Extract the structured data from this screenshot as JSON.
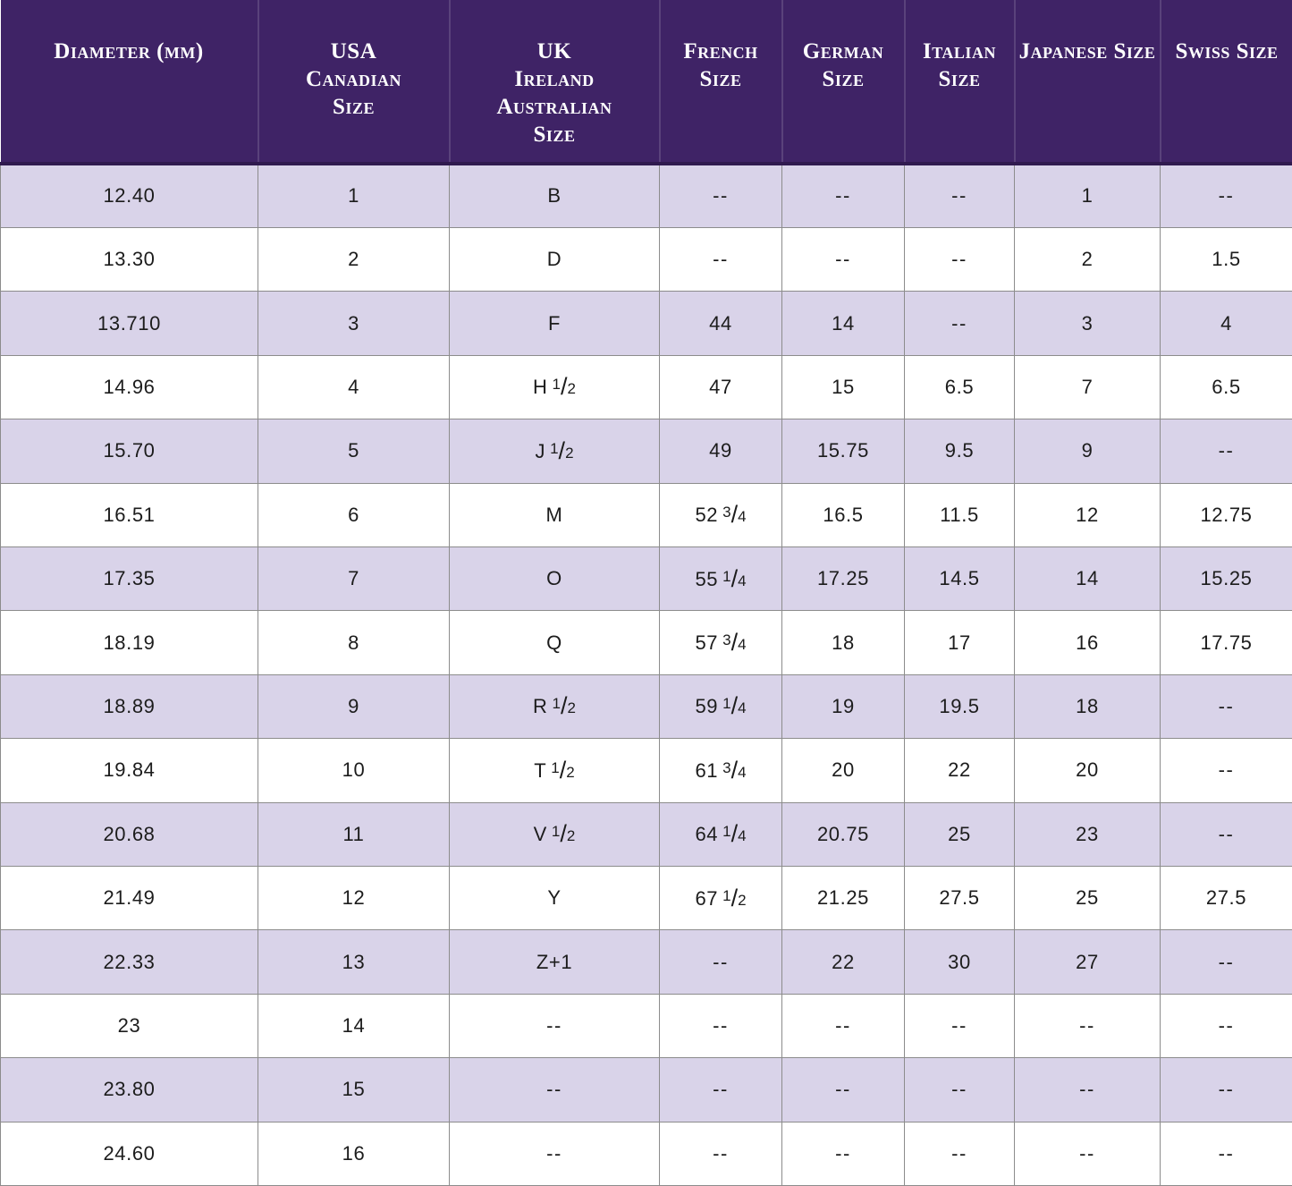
{
  "colors": {
    "header_bg": "#3f2366",
    "header_text": "#ffffff",
    "row_bg": "#ffffff",
    "row_alt_bg": "#d9d3e9",
    "grid": "#8c8c8c",
    "body_text": "#1c1c1c"
  },
  "table": {
    "columns": [
      {
        "id": "diameter",
        "label": "Diameter (mm)",
        "lines": [
          "Diameter (mm)"
        ]
      },
      {
        "id": "usa-canadian",
        "label": "USA Canadian Size",
        "lines": [
          "USA",
          "Canadian",
          "Size"
        ]
      },
      {
        "id": "uk-ireland-australian",
        "label": "UK Ireland Australian Size",
        "lines": [
          "UK",
          "Ireland",
          "Australian",
          "Size"
        ]
      },
      {
        "id": "french",
        "label": "French Size",
        "lines": [
          "French",
          "Size"
        ]
      },
      {
        "id": "german",
        "label": "German Size",
        "lines": [
          "German",
          "Size"
        ]
      },
      {
        "id": "italian",
        "label": "Italian Size",
        "lines": [
          "Italian",
          "Size"
        ]
      },
      {
        "id": "japanese",
        "label": "Japanese Size",
        "lines": [
          "Japanese Size"
        ]
      },
      {
        "id": "swiss",
        "label": "Swiss Size",
        "lines": [
          "Swiss Size"
        ]
      }
    ],
    "rows": [
      [
        "12.40",
        "1",
        "B",
        "--",
        "--",
        "--",
        "1",
        "--"
      ],
      [
        "13.30",
        "2",
        "D",
        "--",
        "--",
        "--",
        "2",
        "1.5"
      ],
      [
        "13.710",
        "3",
        "F",
        "44",
        "14",
        "--",
        "3",
        "4"
      ],
      [
        "14.96",
        "4",
        "H 1/2",
        "47",
        "15",
        "6.5",
        "7",
        "6.5"
      ],
      [
        "15.70",
        "5",
        "J 1/2",
        "49",
        "15.75",
        "9.5",
        "9",
        "--"
      ],
      [
        "16.51",
        "6",
        "M",
        "52 3/4",
        "16.5",
        "11.5",
        "12",
        "12.75"
      ],
      [
        "17.35",
        "7",
        "O",
        "55 1/4",
        "17.25",
        "14.5",
        "14",
        "15.25"
      ],
      [
        "18.19",
        "8",
        "Q",
        "57 3/4",
        "18",
        "17",
        "16",
        "17.75"
      ],
      [
        "18.89",
        "9",
        "R 1/2",
        "59 1/4",
        "19",
        "19.5",
        "18",
        "--"
      ],
      [
        "19.84",
        "10",
        "T 1/2",
        "61 3/4",
        "20",
        "22",
        "20",
        "--"
      ],
      [
        "20.68",
        "11",
        "V 1/2",
        "64 1/4",
        "20.75",
        "25",
        "23",
        "--"
      ],
      [
        "21.49",
        "12",
        "Y",
        "67 1/2",
        "21.25",
        "27.5",
        "25",
        "27.5"
      ],
      [
        "22.33",
        "13",
        "Z+1",
        "--",
        "22",
        "30",
        "27",
        "--"
      ],
      [
        "23",
        "14",
        "--",
        "--",
        "--",
        "--",
        "--",
        "--"
      ],
      [
        "23.80",
        "15",
        "--",
        "--",
        "--",
        "--",
        "--",
        "--"
      ],
      [
        "24.60",
        "16",
        "--",
        "--",
        "--",
        "--",
        "--",
        "--"
      ]
    ]
  }
}
